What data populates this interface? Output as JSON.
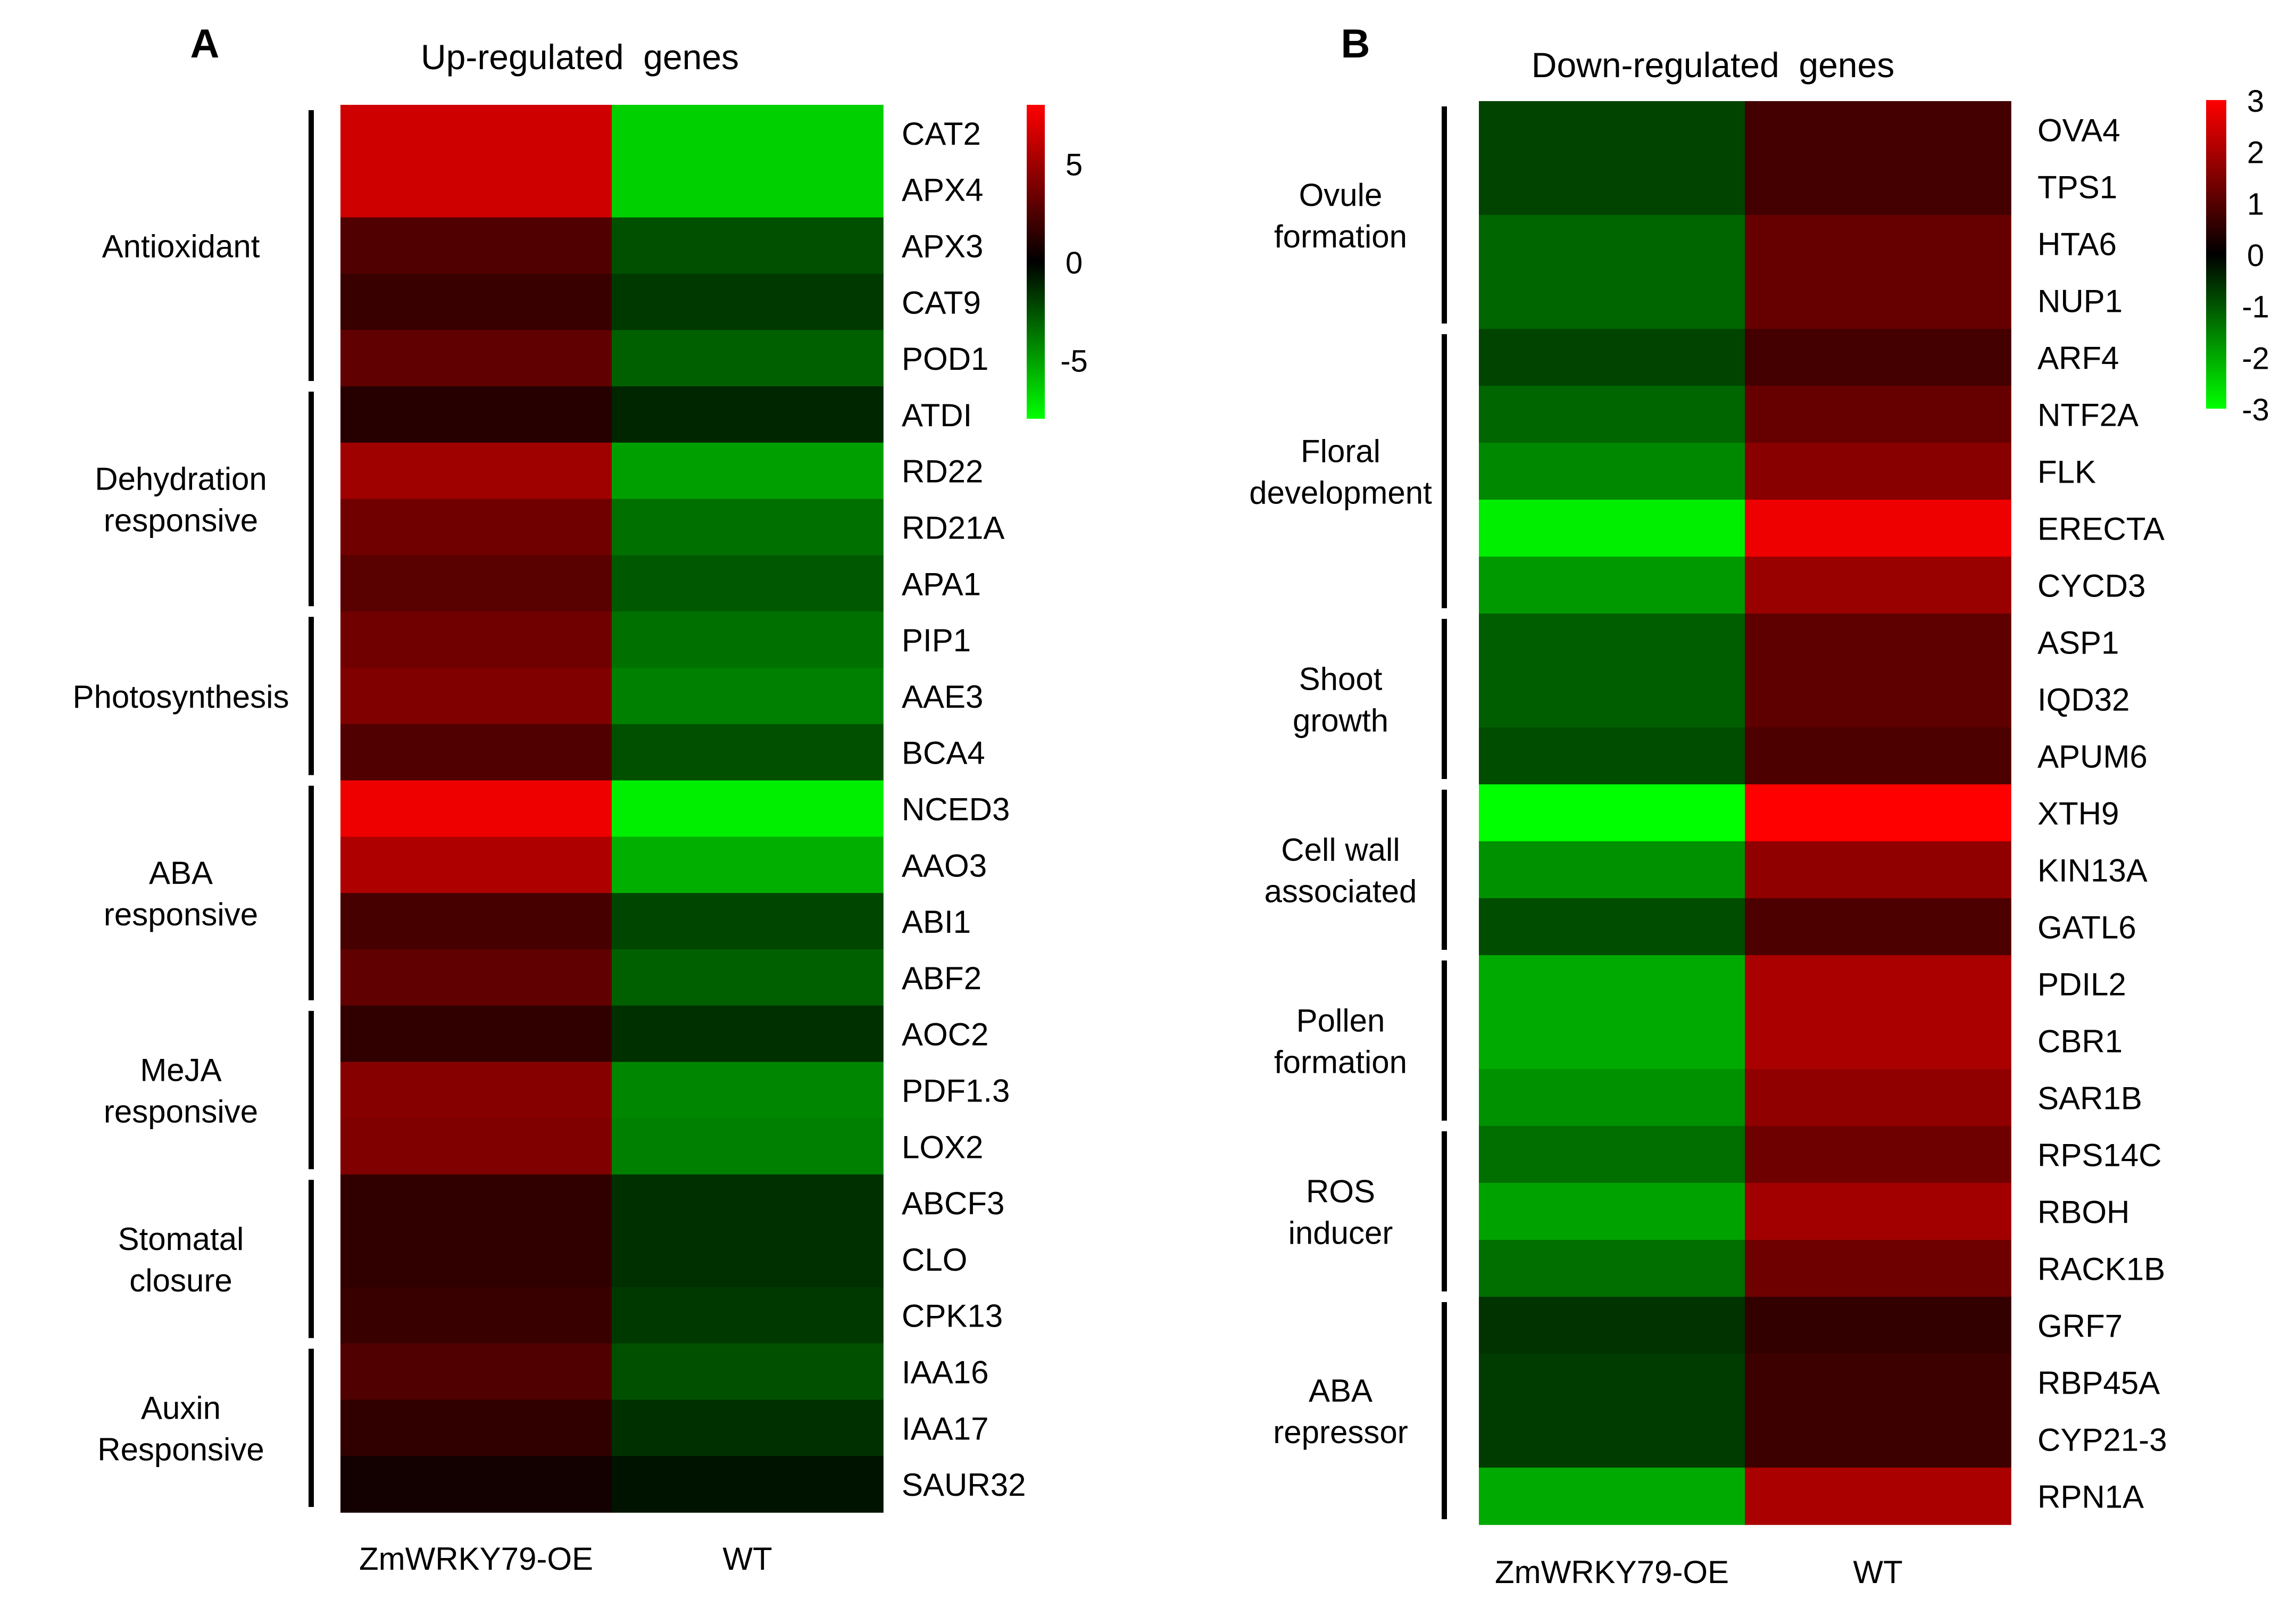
{
  "figure": {
    "panel_a_label": "A",
    "panel_b_label": "B"
  },
  "chart_data": [
    {
      "type": "heatmap",
      "panel": "A",
      "title": "Up-regulated  genes",
      "columns": [
        "ZmWRKY79-OE",
        "WT"
      ],
      "colorbar": {
        "ticks": [
          5,
          0,
          -5
        ],
        "range": [
          -8,
          8
        ],
        "low_color": "#00ff00",
        "mid_color": "#000000",
        "high_color": "#ff0000"
      },
      "rows": [
        "CAT2",
        "APX4",
        "APX3",
        "CAT9",
        "POD1",
        "ATDI",
        "RD22",
        "RD21A",
        "APA1",
        "PIP1",
        "AAE3",
        "BCA4",
        "NCED3",
        "AAO3",
        "ABI1",
        "ABF2",
        "AOC2",
        "PDF1.3",
        "LOX2",
        "ABCF3",
        "CLO",
        "CPK13",
        "IAA16",
        "IAA17",
        "SAUR32"
      ],
      "values": [
        [
          6.5,
          -6.5
        ],
        [
          6.5,
          -6.5
        ],
        [
          2.5,
          -2.5
        ],
        [
          1.8,
          -1.8
        ],
        [
          3,
          -3
        ],
        [
          1.2,
          -1.2
        ],
        [
          5,
          -5
        ],
        [
          3.5,
          -3.5
        ],
        [
          2.8,
          -2.8
        ],
        [
          3.5,
          -3.5
        ],
        [
          4,
          -4
        ],
        [
          2.5,
          -2.5
        ],
        [
          7.5,
          -7.5
        ],
        [
          5.5,
          -5.5
        ],
        [
          2.2,
          -2.2
        ],
        [
          3,
          -3
        ],
        [
          1.5,
          -1.5
        ],
        [
          4.2,
          -4.2
        ],
        [
          4,
          -4
        ],
        [
          1.5,
          -1.5
        ],
        [
          1.5,
          -1.5
        ],
        [
          1.8,
          -1.8
        ],
        [
          2.5,
          -2.5
        ],
        [
          1.5,
          -1.5
        ],
        [
          0.6,
          -0.6
        ]
      ],
      "groups": [
        {
          "label": [
            "Antioxidant"
          ],
          "start": 0,
          "end": 4
        },
        {
          "label": [
            "Dehydration",
            "responsive"
          ],
          "start": 5,
          "end": 8
        },
        {
          "label": [
            "Photosynthesis"
          ],
          "start": 9,
          "end": 11
        },
        {
          "label": [
            "ABA",
            "responsive"
          ],
          "start": 12,
          "end": 15
        },
        {
          "label": [
            "MeJA",
            "responsive"
          ],
          "start": 16,
          "end": 18
        },
        {
          "label": [
            "Stomatal",
            "closure"
          ],
          "start": 19,
          "end": 21
        },
        {
          "label": [
            "Auxin",
            "Responsive"
          ],
          "start": 22,
          "end": 24
        }
      ]
    },
    {
      "type": "heatmap",
      "panel": "B",
      "title": "Down-regulated  genes",
      "columns": [
        "ZmWRKY79-OE",
        "WT"
      ],
      "colorbar": {
        "ticks": [
          3,
          2,
          1,
          0,
          -1,
          -2,
          -3
        ],
        "range": [
          -3,
          3
        ],
        "low_color": "#00ff00",
        "mid_color": "#000000",
        "high_color": "#ff0000"
      },
      "rows": [
        "OVA4",
        "TPS1",
        "HTA6",
        "NUP1",
        "ARF4",
        "NTF2A",
        "FLK",
        "ERECTA",
        "CYCD3",
        "ASP1",
        "IQD32",
        "APUM6",
        "XTH9",
        "KIN13A",
        "GATL6",
        "PDIL2",
        "CBR1",
        "SAR1B",
        "RPS14C",
        "RBOH",
        "RACK1B",
        "GRF7",
        "RBP45A",
        "CYP21-3",
        "RPN1A"
      ],
      "values": [
        [
          -0.8,
          0.8
        ],
        [
          -0.8,
          0.8
        ],
        [
          -1.2,
          1.2
        ],
        [
          -1.2,
          1.2
        ],
        [
          -0.8,
          0.8
        ],
        [
          -1.2,
          1.2
        ],
        [
          -1.6,
          1.6
        ],
        [
          -2.8,
          2.8
        ],
        [
          -1.8,
          1.8
        ],
        [
          -1.1,
          1.1
        ],
        [
          -1.1,
          1.1
        ],
        [
          -0.9,
          0.9
        ],
        [
          -3,
          3
        ],
        [
          -1.7,
          1.7
        ],
        [
          -0.9,
          0.9
        ],
        [
          -2,
          2
        ],
        [
          -2,
          2
        ],
        [
          -1.7,
          1.7
        ],
        [
          -1.3,
          1.3
        ],
        [
          -1.9,
          1.9
        ],
        [
          -1.3,
          1.3
        ],
        [
          -0.6,
          0.6
        ],
        [
          -0.7,
          0.7
        ],
        [
          -0.7,
          0.7
        ],
        [
          -2,
          2
        ]
      ],
      "groups": [
        {
          "label": [
            "Ovule",
            "formation"
          ],
          "start": 0,
          "end": 3
        },
        {
          "label": [
            "Floral",
            "development"
          ],
          "start": 4,
          "end": 8
        },
        {
          "label": [
            "Shoot",
            "growth"
          ],
          "start": 9,
          "end": 11
        },
        {
          "label": [
            "Cell wall",
            "associated"
          ],
          "start": 12,
          "end": 14
        },
        {
          "label": [
            "Pollen",
            "formation"
          ],
          "start": 15,
          "end": 17
        },
        {
          "label": [
            "ROS",
            "inducer"
          ],
          "start": 18,
          "end": 20
        },
        {
          "label": [
            "ABA",
            "repressor"
          ],
          "start": 21,
          "end": 24
        }
      ]
    }
  ]
}
